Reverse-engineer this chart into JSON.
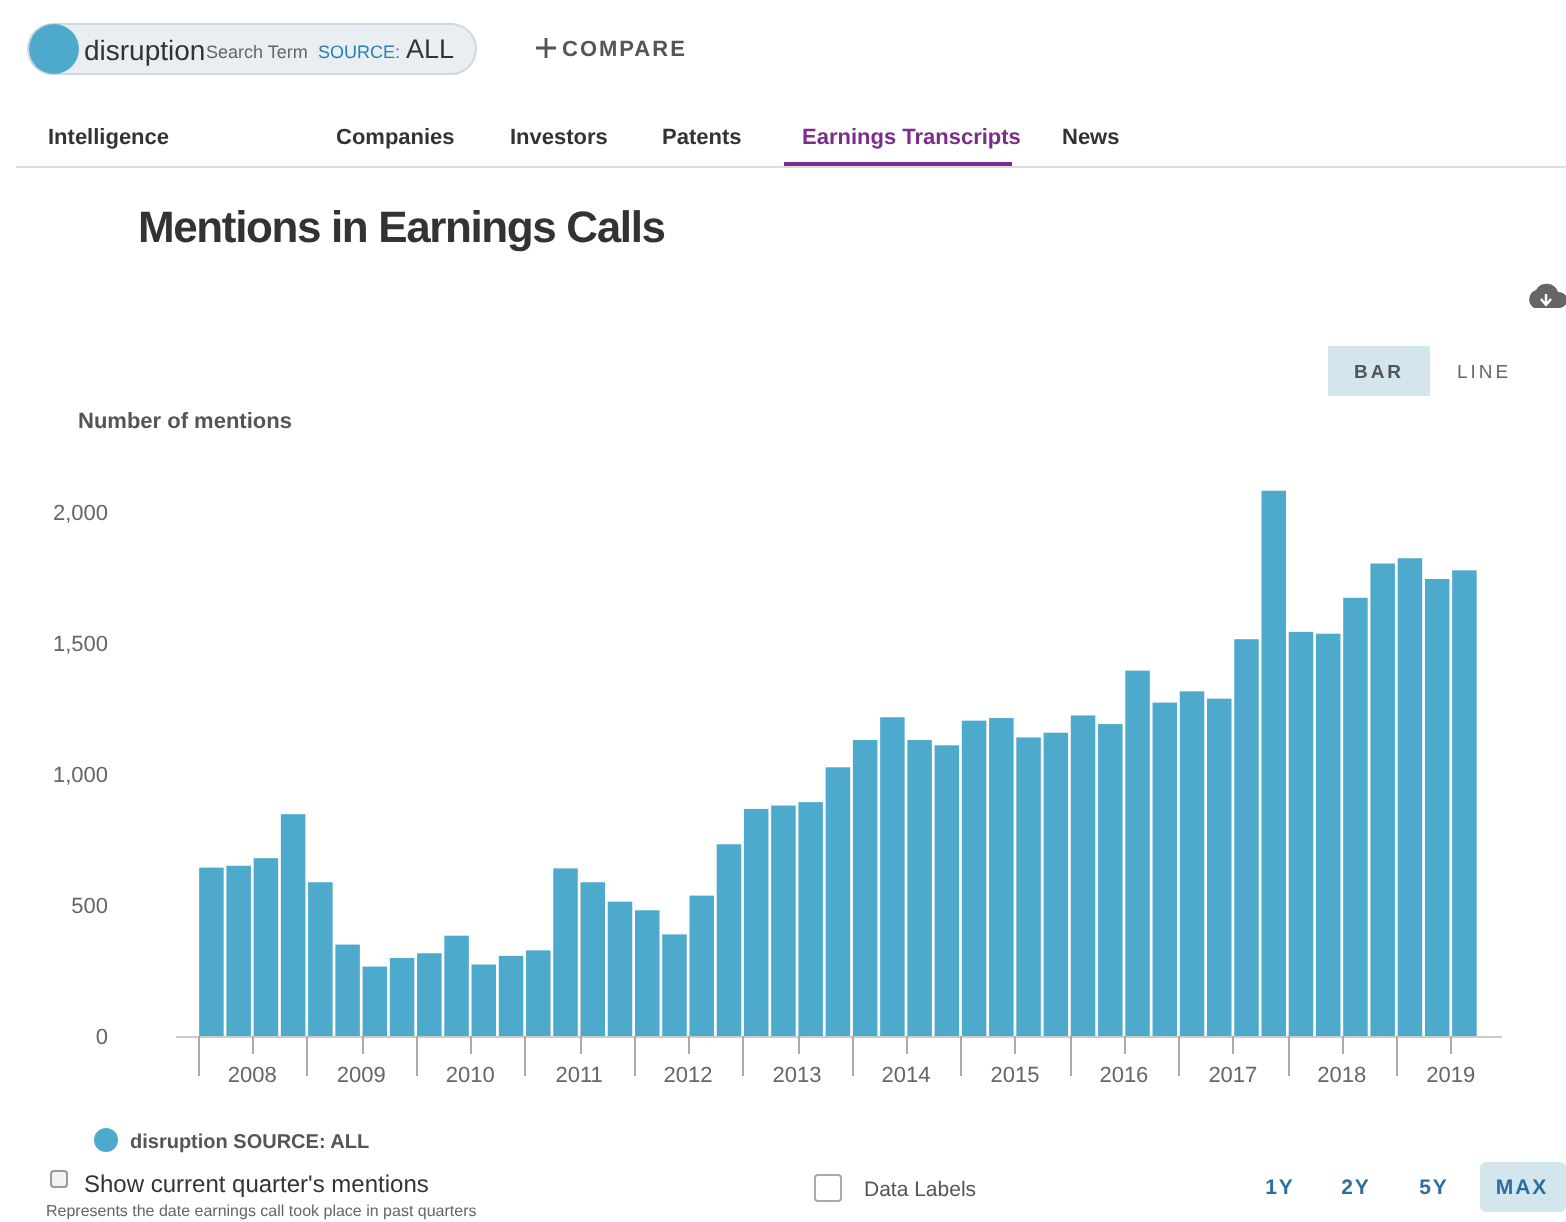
{
  "chart_data": {
    "type": "bar",
    "title": "Mentions in Earnings Calls",
    "ylabel": "Number of mentions",
    "x": [
      2008.125,
      2008.375,
      2008.625,
      2008.875,
      2009.125,
      2009.375,
      2009.625,
      2009.875,
      2010.125,
      2010.375,
      2010.625,
      2010.875,
      2011.125,
      2011.375,
      2011.625,
      2011.875,
      2012.125,
      2012.375,
      2012.625,
      2012.875,
      2013.125,
      2013.375,
      2013.625,
      2013.875,
      2014.125,
      2014.375,
      2014.625,
      2014.875,
      2015.125,
      2015.375,
      2015.625,
      2015.875,
      2016.125,
      2016.375,
      2016.625,
      2016.875,
      2017.125,
      2017.375,
      2017.625,
      2017.875,
      2018.125,
      2018.375,
      2018.625,
      2018.875,
      2019.125,
      2019.375,
      2019.625
    ],
    "series": [
      {
        "name": "disruption SOURCE: ALL",
        "color": "#4eaacc",
        "values": [
          643,
          650,
          679,
          847,
          587,
          349,
          265,
          298,
          316,
          383,
          273,
          306,
          327,
          640,
          587,
          513,
          480,
          388,
          536,
          732,
          867,
          880,
          893,
          1026,
          1130,
          1217,
          1130,
          1110,
          1204,
          1214,
          1140,
          1158,
          1224,
          1191,
          1395,
          1273,
          1316,
          1288,
          1515,
          2082,
          1543,
          1536,
          1673,
          1804,
          1824,
          1745,
          1778
        ]
      }
    ],
    "xlim": [
      2007.8,
      2019.97
    ],
    "xticks": [
      {
        "value": 2008.5,
        "label": "2008"
      },
      {
        "value": 2009.5,
        "label": "2009"
      },
      {
        "value": 2010.5,
        "label": "2010"
      },
      {
        "value": 2011.5,
        "label": "2011"
      },
      {
        "value": 2012.5,
        "label": "2012"
      },
      {
        "value": 2013.5,
        "label": "2013"
      },
      {
        "value": 2014.5,
        "label": "2014"
      },
      {
        "value": 2015.5,
        "label": "2015"
      },
      {
        "value": 2016.5,
        "label": "2016"
      },
      {
        "value": 2017.5,
        "label": "2017"
      },
      {
        "value": 2018.5,
        "label": "2018"
      },
      {
        "value": 2019.5,
        "label": "2019"
      }
    ],
    "ylim": [
      0,
      2100
    ],
    "yticks": [
      0,
      500,
      {
        "value": 1000,
        "label": "1,000"
      },
      {
        "value": 1500,
        "label": "1,500"
      },
      {
        "value": 2000,
        "label": "2,000"
      }
    ],
    "grid": false,
    "legend": "bottom left",
    "annotations": [
      "disruption",
      "Search Term",
      "SOURCE:",
      "ALL",
      "COMPARE",
      "Intelligence",
      "Companies",
      "Investors",
      "Patents",
      "Earnings Transcripts",
      "News",
      "BAR",
      "LINE",
      "Show current quarter's mentions",
      "Data Labels",
      "1Y",
      "2Y",
      "5Y",
      "MAX",
      "Represents the date earnings call took place in past quarters"
    ]
  }
}
